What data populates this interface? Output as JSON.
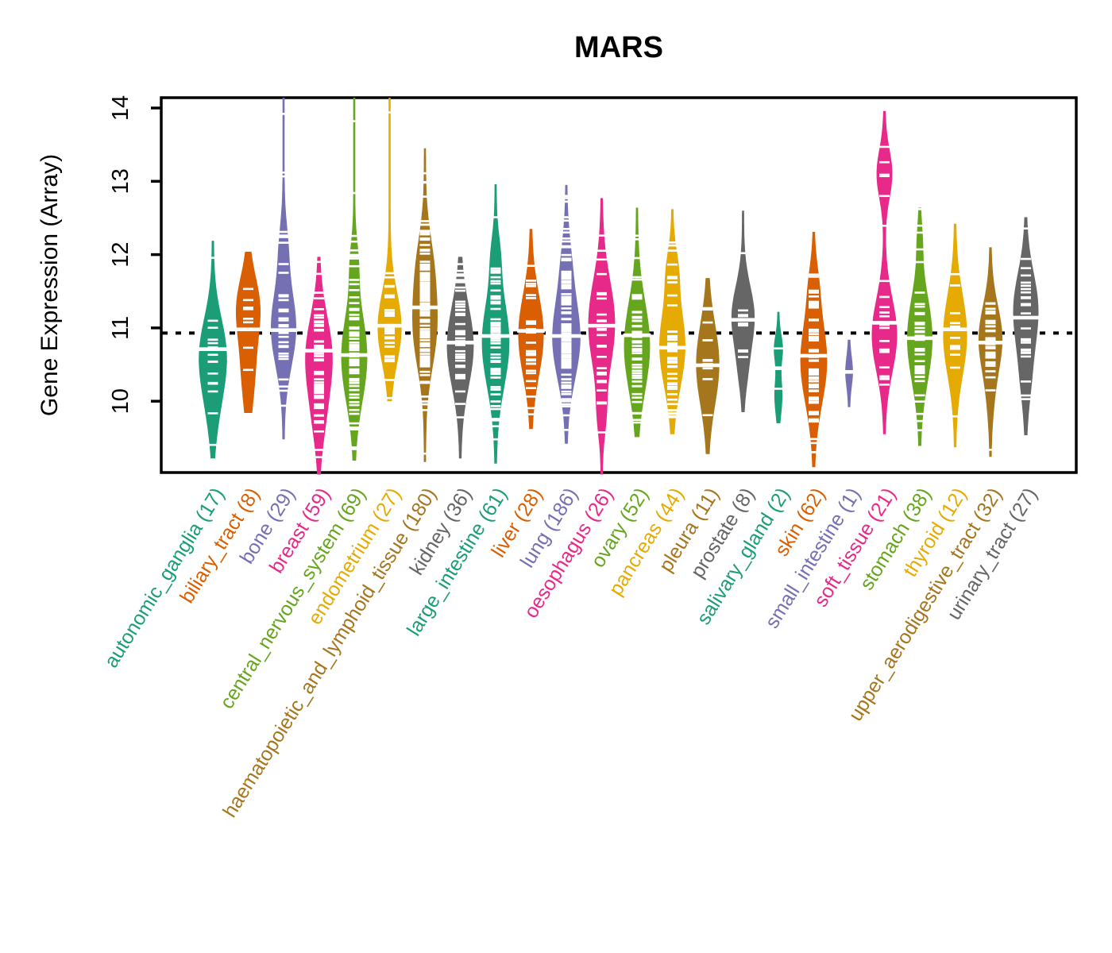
{
  "chart_data": {
    "type": "violin",
    "title": "MARS",
    "ylabel": "Gene Expression (Array)",
    "xlabel": "",
    "yticks": [
      10,
      11,
      12,
      13,
      14
    ],
    "ylim": [
      9.03,
      14.14
    ],
    "grid": false,
    "legend": false,
    "overall_mean_line": 10.93,
    "overall_line_style": "dotted",
    "tick_color": "#ffffff",
    "palette_dark2": [
      "#1B9E77",
      "#D95F02",
      "#7570B3",
      "#E7298A",
      "#66A61E",
      "#E6AB02",
      "#A6761D",
      "#666666"
    ],
    "groups": [
      {
        "label": "autonomic_ganglia",
        "n": 17,
        "color": "#1B9E77",
        "min": 9.22,
        "max": 12.19,
        "median": 10.71,
        "width": 0.74,
        "components": [
          [
            10.65,
            0.5,
            0.8
          ],
          [
            9.9,
            0.45,
            0.2
          ]
        ],
        "outlier_ticks": []
      },
      {
        "label": "biliary_tract",
        "n": 8,
        "color": "#D95F02",
        "min": 9.84,
        "max": 12.04,
        "median": 10.98,
        "width": 0.64,
        "components": [
          [
            11.3,
            0.42,
            0.6
          ],
          [
            10.4,
            0.5,
            0.4
          ]
        ],
        "outlier_ticks": []
      },
      {
        "label": "bone",
        "n": 29,
        "color": "#7570B3",
        "min": 9.48,
        "max": 14.14,
        "median": 10.97,
        "width": 0.66,
        "components": [
          [
            11.0,
            0.52,
            0.85
          ],
          [
            12.1,
            0.35,
            0.15
          ]
        ],
        "outlier_ticks": [
          13.92,
          13.12
        ]
      },
      {
        "label": "breast",
        "n": 59,
        "color": "#E7298A",
        "min": 9.0,
        "max": 11.97,
        "median": 10.69,
        "width": 0.72,
        "components": [
          [
            10.6,
            0.55,
            0.85
          ],
          [
            9.7,
            0.4,
            0.15
          ]
        ],
        "outlier_ticks": [
          11.9
        ]
      },
      {
        "label": "central_nervous_system",
        "n": 69,
        "color": "#66A61E",
        "min": 9.19,
        "max": 14.14,
        "median": 10.63,
        "width": 0.68,
        "components": [
          [
            10.6,
            0.6,
            0.9
          ],
          [
            11.9,
            0.3,
            0.1
          ]
        ],
        "outlier_ticks": [
          13.82,
          12.84
        ]
      },
      {
        "label": "endometrium",
        "n": 27,
        "color": "#E6AB02",
        "min": 10.0,
        "max": 14.14,
        "median": 11.03,
        "width": 0.62,
        "components": [
          [
            11.0,
            0.48,
            1.0
          ]
        ],
        "outlier_ticks": [
          13.94
        ]
      },
      {
        "label": "haematopoietic_and_lymphoid_tissue",
        "n": 180,
        "color": "#A6761D",
        "min": 9.17,
        "max": 13.45,
        "median": 11.28,
        "width": 0.66,
        "components": [
          [
            11.0,
            0.55,
            0.7
          ],
          [
            11.9,
            0.45,
            0.3
          ]
        ],
        "outlier_ticks": [
          13.11
        ]
      },
      {
        "label": "kidney",
        "n": 36,
        "color": "#666666",
        "min": 9.22,
        "max": 11.97,
        "median": 10.8,
        "width": 0.7,
        "components": [
          [
            10.75,
            0.55,
            1.0
          ]
        ],
        "outlier_ticks": []
      },
      {
        "label": "large_intestine",
        "n": 61,
        "color": "#1B9E77",
        "min": 9.15,
        "max": 12.96,
        "median": 10.89,
        "width": 0.72,
        "components": [
          [
            10.8,
            0.6,
            0.9
          ],
          [
            12.0,
            0.3,
            0.1
          ]
        ],
        "outlier_ticks": [
          12.51
        ]
      },
      {
        "label": "liver",
        "n": 28,
        "color": "#D95F02",
        "min": 9.62,
        "max": 12.35,
        "median": 10.96,
        "width": 0.66,
        "components": [
          [
            10.9,
            0.55,
            1.0
          ]
        ],
        "outlier_ticks": []
      },
      {
        "label": "lung",
        "n": 186,
        "color": "#7570B3",
        "min": 9.42,
        "max": 12.95,
        "median": 10.89,
        "width": 0.74,
        "components": [
          [
            10.85,
            0.55,
            0.85
          ],
          [
            11.9,
            0.4,
            0.15
          ]
        ],
        "outlier_ticks": [
          12.8,
          12.51,
          12.35
        ]
      },
      {
        "label": "oesophagus",
        "n": 26,
        "color": "#E7298A",
        "min": 9.0,
        "max": 12.77,
        "median": 11.03,
        "width": 0.7,
        "components": [
          [
            11.05,
            0.6,
            0.9
          ],
          [
            9.8,
            0.3,
            0.1
          ]
        ],
        "outlier_ticks": [
          12.26
        ]
      },
      {
        "label": "ovary",
        "n": 52,
        "color": "#66A61E",
        "min": 9.51,
        "max": 12.64,
        "median": 10.9,
        "width": 0.68,
        "components": [
          [
            10.75,
            0.6,
            1.0
          ]
        ],
        "outlier_ticks": []
      },
      {
        "label": "pancreas",
        "n": 44,
        "color": "#E6AB02",
        "min": 9.55,
        "max": 12.62,
        "median": 10.73,
        "width": 0.68,
        "components": [
          [
            10.75,
            0.55,
            0.85
          ],
          [
            11.8,
            0.3,
            0.15
          ]
        ],
        "outlier_ticks": []
      },
      {
        "label": "pleura",
        "n": 11,
        "color": "#A6761D",
        "min": 9.28,
        "max": 11.68,
        "median": 10.49,
        "width": 0.6,
        "components": [
          [
            10.5,
            0.55,
            1.0
          ]
        ],
        "outlier_ticks": []
      },
      {
        "label": "prostate",
        "n": 8,
        "color": "#666666",
        "min": 9.85,
        "max": 12.6,
        "median": 11.11,
        "width": 0.6,
        "components": [
          [
            11.15,
            0.42,
            0.85
          ],
          [
            10.4,
            0.3,
            0.15
          ]
        ],
        "outlier_ticks": [
          12.02
        ]
      },
      {
        "label": "salivary_gland",
        "n": 2,
        "color": "#1B9E77",
        "min": 9.7,
        "max": 11.22,
        "median": 10.45,
        "width": 0.2,
        "components": [
          [
            10.72,
            0.18,
            0.45
          ],
          [
            10.08,
            0.25,
            0.55
          ]
        ],
        "outlier_ticks": [],
        "points": [
          10.72,
          10.17
        ]
      },
      {
        "label": "skin",
        "n": 62,
        "color": "#D95F02",
        "min": 9.1,
        "max": 12.31,
        "median": 10.62,
        "width": 0.7,
        "components": [
          [
            10.55,
            0.58,
            0.9
          ],
          [
            11.6,
            0.3,
            0.1
          ]
        ],
        "outlier_ticks": []
      },
      {
        "label": "small_intestine",
        "n": 1,
        "color": "#7570B3",
        "min": 9.92,
        "max": 10.84,
        "median": 10.4,
        "width": 0.16,
        "components": [
          [
            10.4,
            0.2,
            1.0
          ]
        ],
        "outlier_ticks": [],
        "points": [
          10.4
        ]
      },
      {
        "label": "soft_tissue",
        "n": 21,
        "color": "#E7298A",
        "min": 9.55,
        "max": 13.96,
        "median": 11.07,
        "width": 0.66,
        "components": [
          [
            10.9,
            0.5,
            0.72
          ],
          [
            13.1,
            0.33,
            0.28
          ]
        ],
        "outlier_ticks": [
          13.47,
          13.09,
          12.8
        ]
      },
      {
        "label": "stomach",
        "n": 38,
        "color": "#66A61E",
        "min": 9.39,
        "max": 12.64,
        "median": 10.86,
        "width": 0.66,
        "components": [
          [
            10.85,
            0.58,
            0.95
          ],
          [
            12.2,
            0.25,
            0.05
          ]
        ],
        "outlier_ticks": [
          12.3
        ]
      },
      {
        "label": "thyroid",
        "n": 12,
        "color": "#E6AB02",
        "min": 9.37,
        "max": 12.42,
        "median": 10.98,
        "width": 0.62,
        "components": [
          [
            10.9,
            0.55,
            1.0
          ]
        ],
        "outlier_ticks": []
      },
      {
        "label": "upper_aerodigestive_tract",
        "n": 32,
        "color": "#A6761D",
        "min": 9.24,
        "max": 12.1,
        "median": 10.8,
        "width": 0.62,
        "components": [
          [
            10.85,
            0.45,
            0.9
          ],
          [
            10.0,
            0.35,
            0.1
          ]
        ],
        "outlier_ticks": []
      },
      {
        "label": "urinary_tract",
        "n": 27,
        "color": "#666666",
        "min": 9.51,
        "max": 12.51,
        "median": 11.14,
        "width": 0.66,
        "components": [
          [
            11.25,
            0.5,
            0.8
          ],
          [
            10.3,
            0.4,
            0.2
          ]
        ],
        "outlier_ticks": []
      }
    ]
  }
}
